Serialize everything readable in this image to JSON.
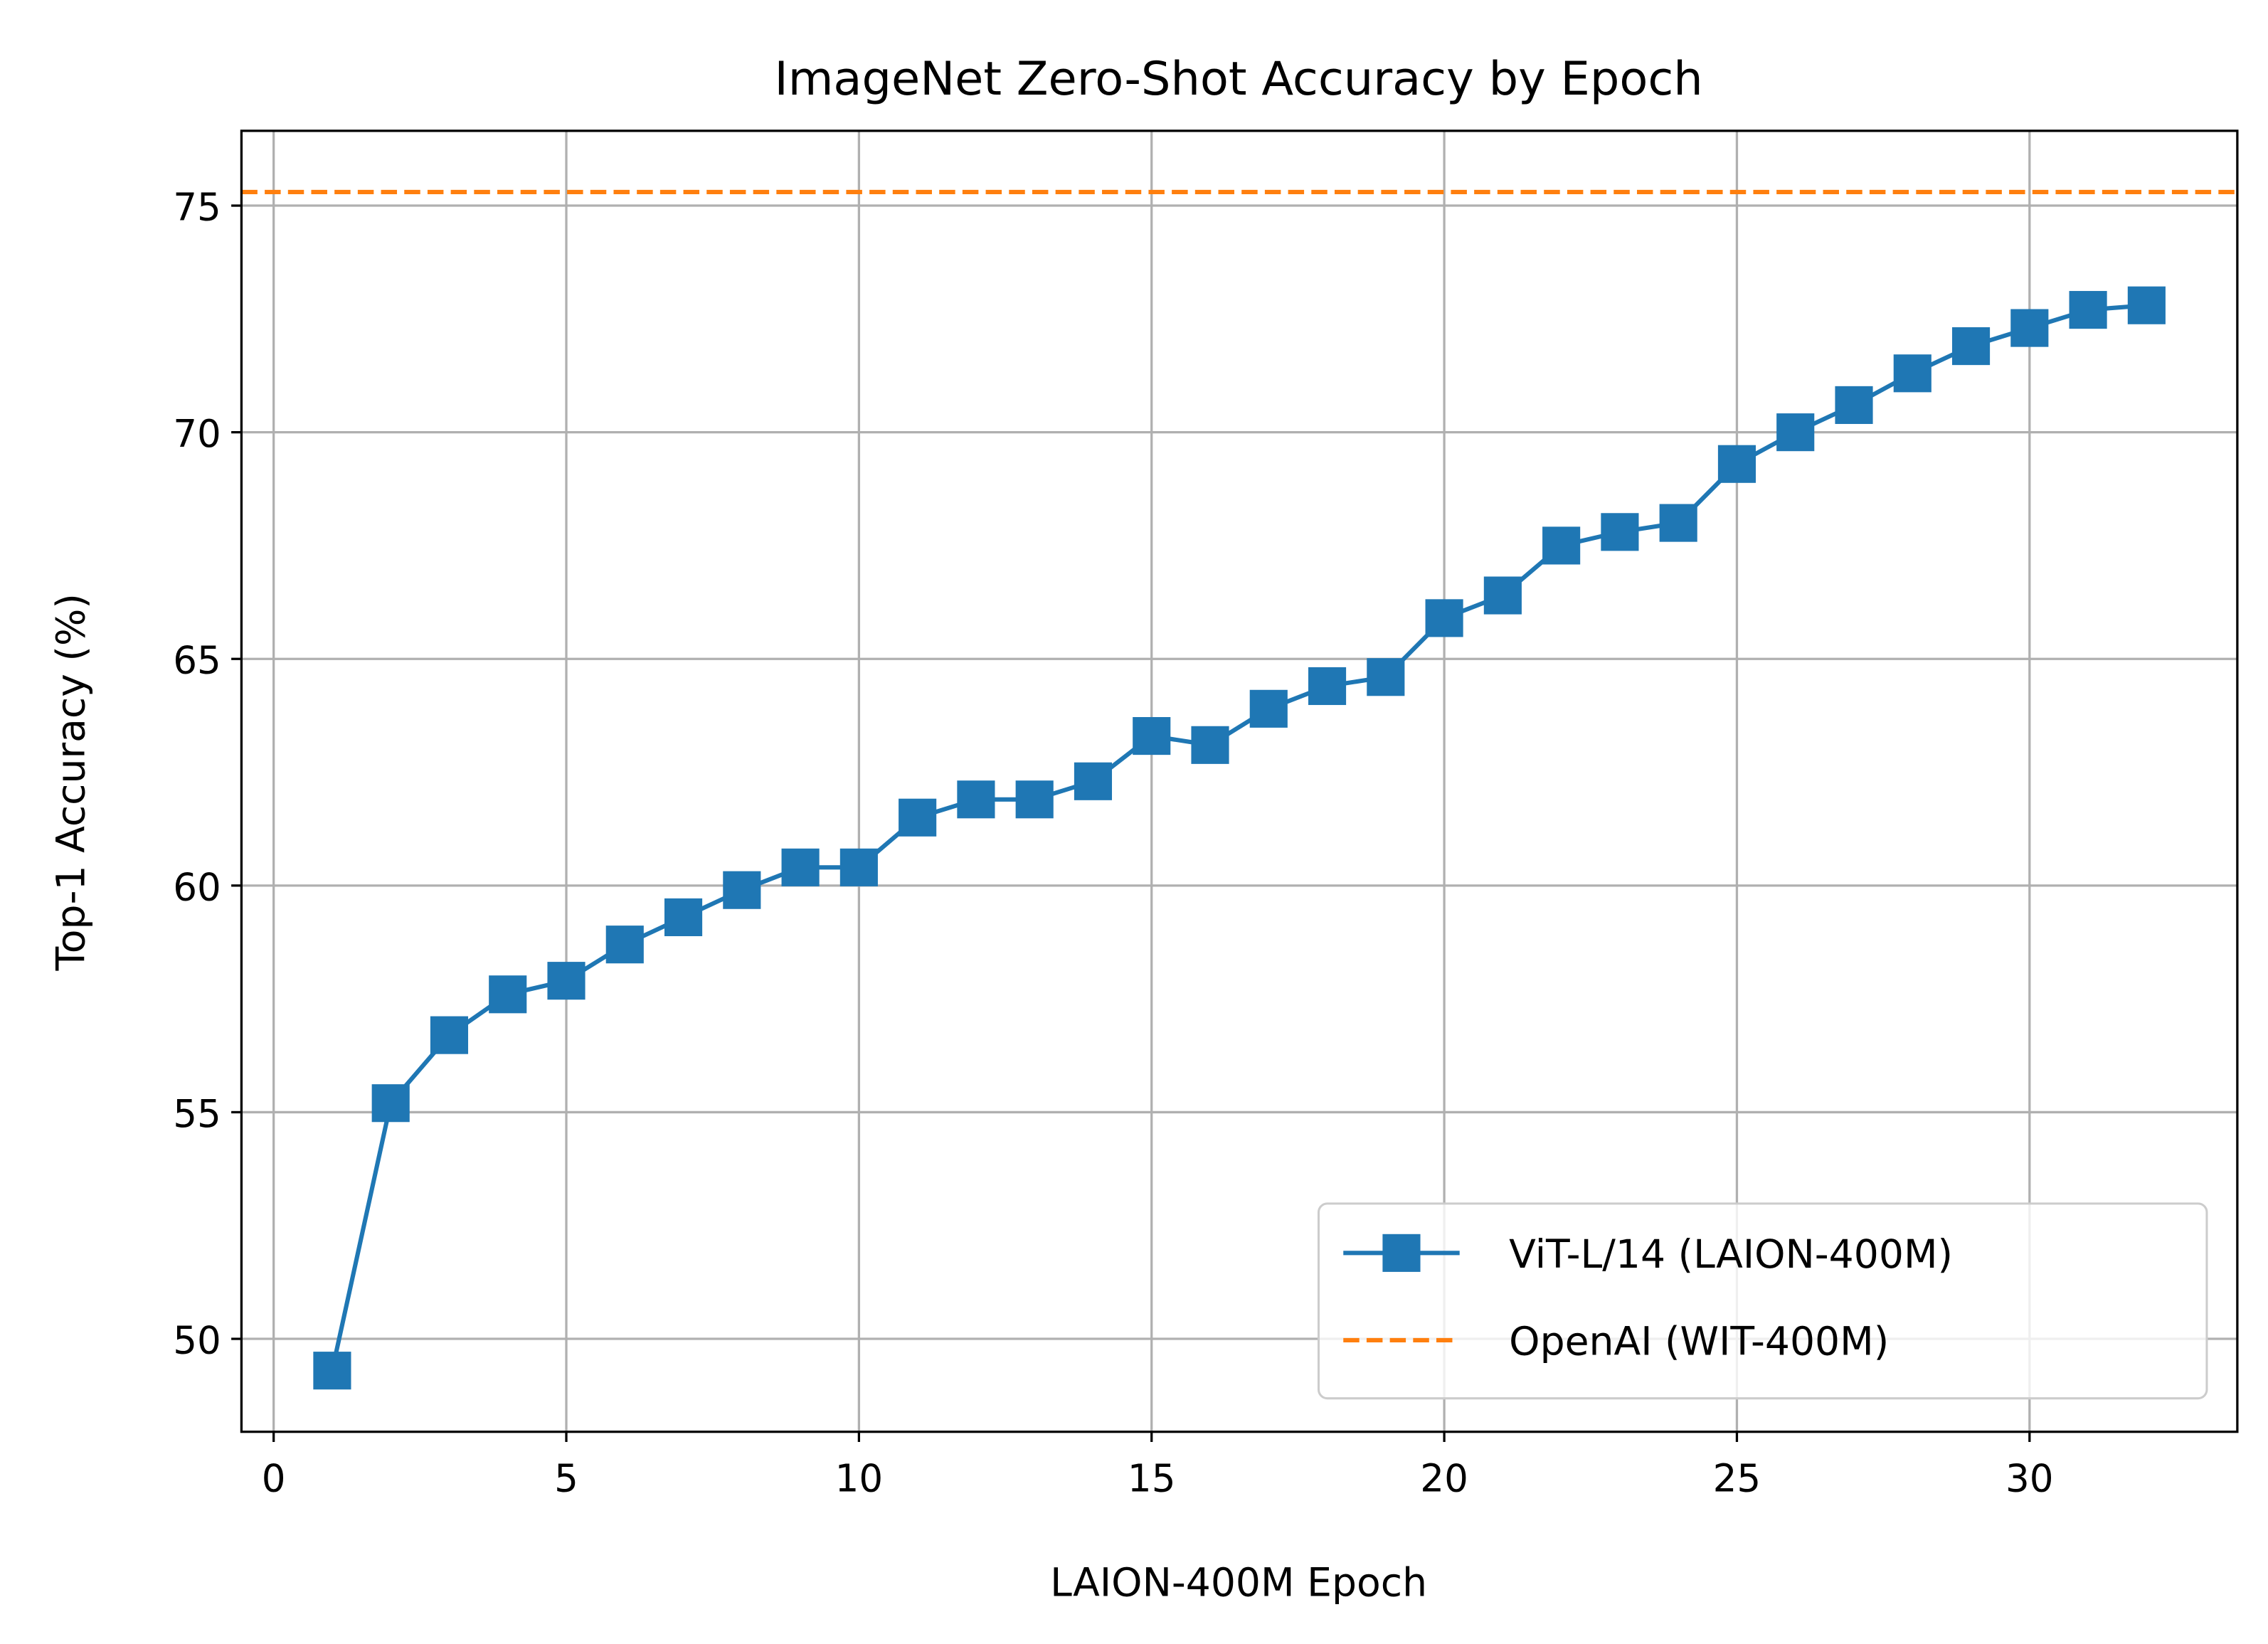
{
  "chart_data": {
    "type": "line",
    "title": "ImageNet Zero-Shot Accuracy by Epoch",
    "xlabel": "LAION-400M Epoch",
    "ylabel": "Top-1 Accuracy (%)",
    "xlim": [
      -0.55,
      33.55
    ],
    "ylim": [
      47.95,
      76.65
    ],
    "xticks": [
      0,
      5,
      10,
      15,
      20,
      25,
      30
    ],
    "yticks": [
      50,
      55,
      60,
      65,
      70,
      75
    ],
    "grid": true,
    "legend_placement": "lower-right",
    "series": [
      {
        "name": "ViT-L/14 (LAION-400M)",
        "color": "#1f77b4",
        "marker": "square",
        "x": [
          1,
          2,
          3,
          4,
          5,
          6,
          7,
          8,
          9,
          10,
          11,
          12,
          13,
          14,
          15,
          16,
          17,
          18,
          19,
          20,
          21,
          22,
          23,
          24,
          25,
          26,
          27,
          28,
          29,
          30,
          31,
          32
        ],
        "y": [
          49.3,
          55.2,
          56.7,
          57.6,
          57.9,
          58.7,
          59.3,
          59.9,
          60.4,
          60.4,
          61.5,
          61.9,
          61.9,
          62.3,
          63.3,
          63.1,
          63.9,
          64.4,
          64.6,
          65.9,
          66.4,
          67.5,
          67.8,
          68.0,
          69.3,
          70.0,
          70.6,
          71.3,
          71.9,
          72.3,
          72.7,
          72.8
        ]
      },
      {
        "name": "OpenAI (WIT-400M)",
        "color": "#ff7f0e",
        "style": "dashed-horizontal",
        "y": 75.3
      }
    ]
  }
}
